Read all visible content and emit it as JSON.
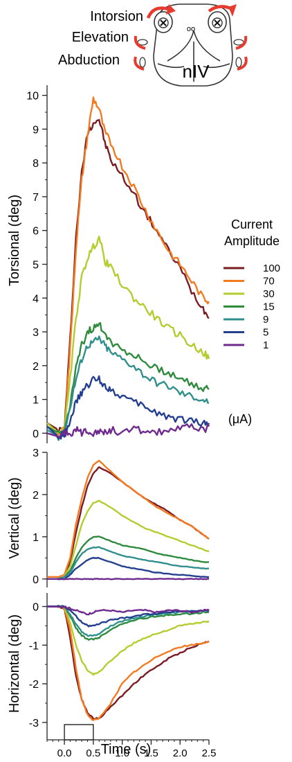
{
  "diagram": {
    "labels": [
      "Intorsion",
      "Elevation",
      "Abduction"
    ],
    "nucleus": "nIV",
    "eye_marks": "oo",
    "arrow_color": "#e63b2e"
  },
  "legend": {
    "title_line1": "Current",
    "title_line2": "Amplitude",
    "unit": "(μA)",
    "placement": "right"
  },
  "stimulus": {
    "start": 0.0,
    "end": 0.5
  },
  "chart_data": [
    {
      "type": "line",
      "panel": "torsional",
      "ylabel": "Torsional (deg)",
      "xlim": [
        -0.3,
        2.5
      ],
      "ylim": [
        -0.3,
        10.3
      ],
      "yticks": [
        0,
        1,
        2,
        3,
        4,
        5,
        6,
        7,
        8,
        9,
        10
      ],
      "grid": false,
      "series": [
        {
          "name": "100",
          "color": "#7b1b22",
          "x": [
            -0.3,
            -0.1,
            0.0,
            0.1,
            0.2,
            0.3,
            0.4,
            0.5,
            0.6,
            0.7,
            0.8,
            1.0,
            1.2,
            1.4,
            1.6,
            1.8,
            2.0,
            2.2,
            2.4,
            2.5
          ],
          "y": [
            0.3,
            0.1,
            0.1,
            2.8,
            5.8,
            7.7,
            8.9,
            9.2,
            9.3,
            8.6,
            8.1,
            7.6,
            7.1,
            6.5,
            6.0,
            5.4,
            4.9,
            4.2,
            3.7,
            3.4
          ]
        },
        {
          "name": "70",
          "color": "#f47a20",
          "x": [
            -0.3,
            -0.1,
            0.0,
            0.1,
            0.2,
            0.3,
            0.4,
            0.5,
            0.6,
            0.7,
            0.8,
            1.0,
            1.2,
            1.4,
            1.6,
            1.8,
            2.0,
            2.2,
            2.4,
            2.5
          ],
          "y": [
            0.2,
            0.0,
            0.1,
            2.5,
            5.5,
            7.5,
            8.8,
            9.9,
            9.6,
            8.9,
            8.6,
            7.9,
            7.3,
            6.6,
            6.0,
            5.4,
            5.0,
            4.5,
            4.0,
            3.9
          ]
        },
        {
          "name": "30",
          "color": "#b5cc2e",
          "x": [
            -0.3,
            -0.1,
            0.0,
            0.1,
            0.2,
            0.3,
            0.4,
            0.5,
            0.6,
            0.7,
            0.8,
            1.0,
            1.2,
            1.4,
            1.6,
            1.8,
            2.0,
            2.2,
            2.4,
            2.5
          ],
          "y": [
            0.3,
            0.0,
            0.1,
            1.6,
            3.4,
            4.6,
            5.2,
            5.5,
            5.8,
            5.1,
            4.9,
            4.4,
            4.0,
            3.7,
            3.4,
            3.1,
            2.9,
            2.6,
            2.4,
            2.2
          ]
        },
        {
          "name": "15",
          "color": "#2e8b3e",
          "x": [
            -0.3,
            -0.1,
            0.0,
            0.1,
            0.2,
            0.3,
            0.4,
            0.5,
            0.6,
            0.7,
            0.8,
            1.0,
            1.2,
            1.4,
            1.6,
            1.8,
            2.0,
            2.2,
            2.4,
            2.5
          ],
          "y": [
            0.2,
            0.0,
            0.0,
            0.9,
            1.9,
            2.6,
            3.0,
            3.1,
            3.2,
            3.0,
            2.7,
            2.5,
            2.3,
            2.1,
            1.9,
            1.8,
            1.6,
            1.5,
            1.3,
            1.3
          ]
        },
        {
          "name": "9",
          "color": "#2f8f8c",
          "x": [
            -0.3,
            -0.1,
            0.0,
            0.1,
            0.2,
            0.3,
            0.4,
            0.5,
            0.6,
            0.7,
            0.8,
            1.0,
            1.2,
            1.4,
            1.6,
            1.8,
            2.0,
            2.2,
            2.4,
            2.5
          ],
          "y": [
            0.1,
            -0.1,
            0.0,
            0.8,
            1.6,
            2.2,
            2.6,
            2.7,
            2.8,
            2.6,
            2.4,
            2.2,
            2.0,
            1.7,
            1.5,
            1.4,
            1.2,
            1.1,
            1.0,
            0.9
          ]
        },
        {
          "name": "5",
          "color": "#233f8f",
          "x": [
            -0.3,
            -0.1,
            0.0,
            0.1,
            0.2,
            0.3,
            0.4,
            0.5,
            0.6,
            0.7,
            0.8,
            1.0,
            1.2,
            1.4,
            1.6,
            1.8,
            2.0,
            2.2,
            2.4,
            2.5
          ],
          "y": [
            0.2,
            -0.1,
            0.0,
            0.4,
            0.9,
            1.2,
            1.4,
            1.6,
            1.6,
            1.4,
            1.3,
            1.1,
            0.9,
            0.8,
            0.6,
            0.5,
            0.4,
            0.4,
            0.3,
            0.3
          ]
        },
        {
          "name": "1",
          "color": "#6e2a8e",
          "x": [
            -0.3,
            -0.1,
            0.0,
            0.1,
            0.2,
            0.3,
            0.4,
            0.5,
            0.6,
            0.7,
            0.8,
            1.0,
            1.2,
            1.4,
            1.6,
            1.8,
            2.0,
            2.2,
            2.4,
            2.5
          ],
          "y": [
            0.0,
            -0.1,
            0.0,
            0.0,
            0.1,
            0.0,
            0.1,
            0.0,
            0.1,
            0.0,
            0.1,
            0.0,
            0.1,
            0.1,
            0.0,
            0.1,
            0.1,
            0.2,
            0.1,
            0.2
          ]
        }
      ]
    },
    {
      "type": "line",
      "panel": "vertical",
      "ylabel": "Vertical (deg)",
      "xlim": [
        -0.3,
        2.5
      ],
      "ylim": [
        -0.2,
        3.0
      ],
      "yticks": [
        0,
        1,
        2,
        3
      ],
      "grid": false,
      "series": [
        {
          "name": "100",
          "color": "#7b1b22",
          "x": [
            -0.3,
            -0.1,
            0.0,
            0.1,
            0.2,
            0.3,
            0.4,
            0.5,
            0.6,
            0.8,
            1.0,
            1.2,
            1.4,
            1.6,
            1.8,
            2.0,
            2.2,
            2.4,
            2.5
          ],
          "y": [
            0.0,
            0.0,
            0.05,
            0.4,
            1.1,
            1.7,
            2.2,
            2.5,
            2.65,
            2.5,
            2.3,
            2.1,
            1.9,
            1.75,
            1.6,
            1.4,
            1.25,
            1.05,
            0.95
          ]
        },
        {
          "name": "70",
          "color": "#f47a20",
          "x": [
            -0.3,
            -0.1,
            0.0,
            0.1,
            0.2,
            0.3,
            0.4,
            0.5,
            0.6,
            0.8,
            1.0,
            1.2,
            1.4,
            1.6,
            1.8,
            2.0,
            2.2,
            2.4,
            2.5
          ],
          "y": [
            0.05,
            0.05,
            0.1,
            0.5,
            1.3,
            1.9,
            2.4,
            2.7,
            2.8,
            2.55,
            2.3,
            2.1,
            1.9,
            1.7,
            1.55,
            1.4,
            1.25,
            1.05,
            0.95
          ]
        },
        {
          "name": "30",
          "color": "#b5cc2e",
          "x": [
            -0.3,
            -0.1,
            0.0,
            0.1,
            0.2,
            0.3,
            0.4,
            0.5,
            0.6,
            0.8,
            1.0,
            1.2,
            1.4,
            1.6,
            1.8,
            2.0,
            2.2,
            2.4,
            2.5
          ],
          "y": [
            0.0,
            0.0,
            0.05,
            0.3,
            0.8,
            1.3,
            1.6,
            1.8,
            1.85,
            1.7,
            1.5,
            1.35,
            1.2,
            1.1,
            1.0,
            0.9,
            0.8,
            0.7,
            0.65
          ]
        },
        {
          "name": "15",
          "color": "#2e8b3e",
          "x": [
            -0.3,
            -0.1,
            0.0,
            0.1,
            0.2,
            0.3,
            0.4,
            0.5,
            0.6,
            0.8,
            1.0,
            1.2,
            1.4,
            1.6,
            1.8,
            2.0,
            2.2,
            2.4,
            2.5
          ],
          "y": [
            0.0,
            0.0,
            0.05,
            0.2,
            0.5,
            0.75,
            0.9,
            1.0,
            1.0,
            0.9,
            0.8,
            0.75,
            0.7,
            0.6,
            0.55,
            0.5,
            0.45,
            0.4,
            0.4
          ]
        },
        {
          "name": "9",
          "color": "#2f8f8c",
          "x": [
            -0.3,
            -0.1,
            0.0,
            0.1,
            0.2,
            0.3,
            0.4,
            0.5,
            0.6,
            0.8,
            1.0,
            1.2,
            1.4,
            1.6,
            1.8,
            2.0,
            2.2,
            2.4,
            2.5
          ],
          "y": [
            0.0,
            0.0,
            0.05,
            0.15,
            0.4,
            0.6,
            0.7,
            0.75,
            0.75,
            0.65,
            0.55,
            0.5,
            0.45,
            0.4,
            0.35,
            0.3,
            0.28,
            0.25,
            0.25
          ]
        },
        {
          "name": "5",
          "color": "#233f8f",
          "x": [
            -0.3,
            -0.1,
            0.0,
            0.1,
            0.2,
            0.3,
            0.4,
            0.5,
            0.6,
            0.8,
            1.0,
            1.2,
            1.4,
            1.6,
            1.8,
            2.0,
            2.2,
            2.4,
            2.5
          ],
          "y": [
            0.0,
            0.0,
            0.0,
            0.1,
            0.25,
            0.35,
            0.45,
            0.5,
            0.5,
            0.4,
            0.3,
            0.25,
            0.2,
            0.15,
            0.12,
            0.1,
            0.08,
            0.05,
            0.05
          ]
        },
        {
          "name": "1",
          "color": "#6e2a8e",
          "x": [
            -0.3,
            -0.1,
            0.0,
            0.1,
            0.2,
            0.3,
            0.4,
            0.5,
            0.6,
            0.8,
            1.0,
            1.2,
            1.4,
            1.6,
            1.8,
            2.0,
            2.2,
            2.4,
            2.5
          ],
          "y": [
            0.0,
            0.0,
            0.0,
            0.0,
            0.0,
            0.0,
            0.0,
            0.0,
            0.0,
            0.0,
            0.0,
            0.0,
            0.0,
            0.0,
            0.0,
            0.0,
            0.0,
            0.0,
            0.0
          ]
        }
      ]
    },
    {
      "type": "line",
      "panel": "horizontal",
      "xlabel": "Time (s)",
      "ylabel": "Horizontal (deg)",
      "xlim": [
        -0.3,
        2.5
      ],
      "xticks": [
        0.0,
        0.5,
        1.0,
        1.5,
        2.0,
        2.5
      ],
      "xtick_labels": [
        "0.0",
        "0.5",
        "1.0",
        "1.5",
        "2.0",
        "2.5"
      ],
      "ylim": [
        -3.45,
        0.35
      ],
      "yticks": [
        0,
        -1,
        -2,
        -3
      ],
      "grid": false,
      "series": [
        {
          "name": "100",
          "color": "#7b1b22",
          "x": [
            -0.3,
            -0.1,
            0.0,
            0.1,
            0.2,
            0.3,
            0.4,
            0.5,
            0.6,
            0.8,
            1.0,
            1.2,
            1.4,
            1.6,
            1.8,
            2.0,
            2.2,
            2.4,
            2.5
          ],
          "y": [
            0.0,
            0.0,
            -0.05,
            -0.8,
            -1.8,
            -2.4,
            -2.75,
            -2.9,
            -2.9,
            -2.6,
            -2.3,
            -2.0,
            -1.75,
            -1.55,
            -1.35,
            -1.2,
            -1.05,
            -0.95,
            -0.9
          ]
        },
        {
          "name": "70",
          "color": "#f47a20",
          "x": [
            -0.3,
            -0.1,
            0.0,
            0.1,
            0.2,
            0.3,
            0.4,
            0.5,
            0.6,
            0.8,
            1.0,
            1.2,
            1.4,
            1.6,
            1.8,
            2.0,
            2.2,
            2.4,
            2.5
          ],
          "y": [
            0.0,
            0.0,
            -0.05,
            -0.6,
            -1.6,
            -2.4,
            -2.8,
            -2.95,
            -2.9,
            -2.5,
            -2.0,
            -1.7,
            -1.5,
            -1.3,
            -1.15,
            -1.05,
            -1.0,
            -0.95,
            -0.9
          ]
        },
        {
          "name": "30",
          "color": "#b5cc2e",
          "x": [
            -0.3,
            -0.1,
            0.0,
            0.1,
            0.2,
            0.3,
            0.4,
            0.5,
            0.6,
            0.8,
            1.0,
            1.2,
            1.4,
            1.6,
            1.8,
            2.0,
            2.2,
            2.4,
            2.5
          ],
          "y": [
            0.0,
            0.0,
            0.0,
            -0.4,
            -1.0,
            -1.4,
            -1.65,
            -1.75,
            -1.7,
            -1.4,
            -1.15,
            -0.95,
            -0.8,
            -0.7,
            -0.6,
            -0.5,
            -0.45,
            -0.4,
            -0.4
          ]
        },
        {
          "name": "15",
          "color": "#2e8b3e",
          "x": [
            -0.3,
            -0.1,
            0.0,
            0.1,
            0.2,
            0.3,
            0.4,
            0.5,
            0.6,
            0.8,
            1.0,
            1.2,
            1.4,
            1.6,
            1.8,
            2.0,
            2.2,
            2.4,
            2.5
          ],
          "y": [
            0.0,
            0.0,
            0.0,
            -0.25,
            -0.55,
            -0.75,
            -0.85,
            -0.85,
            -0.8,
            -0.6,
            -0.45,
            -0.35,
            -0.3,
            -0.25,
            -0.22,
            -0.2,
            -0.18,
            -0.15,
            -0.15
          ]
        },
        {
          "name": "9",
          "color": "#2f8f8c",
          "x": [
            -0.3,
            -0.1,
            0.0,
            0.1,
            0.2,
            0.3,
            0.4,
            0.5,
            0.6,
            0.8,
            1.0,
            1.2,
            1.4,
            1.6,
            1.8,
            2.0,
            2.2,
            2.4,
            2.5
          ],
          "y": [
            0.0,
            0.0,
            0.0,
            -0.2,
            -0.45,
            -0.65,
            -0.75,
            -0.75,
            -0.7,
            -0.5,
            -0.38,
            -0.3,
            -0.25,
            -0.2,
            -0.18,
            -0.15,
            -0.12,
            -0.12,
            -0.1
          ]
        },
        {
          "name": "5",
          "color": "#233f8f",
          "x": [
            -0.3,
            -0.1,
            0.0,
            0.1,
            0.2,
            0.3,
            0.4,
            0.5,
            0.6,
            0.8,
            1.0,
            1.2,
            1.4,
            1.6,
            1.8,
            2.0,
            2.2,
            2.4,
            2.5
          ],
          "y": [
            0.0,
            0.0,
            0.0,
            -0.1,
            -0.25,
            -0.4,
            -0.5,
            -0.5,
            -0.45,
            -0.35,
            -0.3,
            -0.25,
            -0.2,
            -0.18,
            -0.15,
            -0.12,
            -0.12,
            -0.1,
            -0.1
          ]
        },
        {
          "name": "1",
          "color": "#6e2a8e",
          "x": [
            -0.3,
            -0.1,
            0.0,
            0.1,
            0.2,
            0.3,
            0.4,
            0.5,
            0.6,
            0.8,
            1.0,
            1.2,
            1.4,
            1.6,
            1.8,
            2.0,
            2.2,
            2.4,
            2.5
          ],
          "y": [
            0.0,
            0.0,
            0.0,
            -0.05,
            -0.1,
            -0.15,
            -0.2,
            -0.15,
            -0.1,
            -0.1,
            -0.15,
            -0.1,
            -0.1,
            -0.15,
            -0.1,
            -0.1,
            -0.15,
            -0.1,
            -0.1
          ]
        }
      ]
    }
  ]
}
